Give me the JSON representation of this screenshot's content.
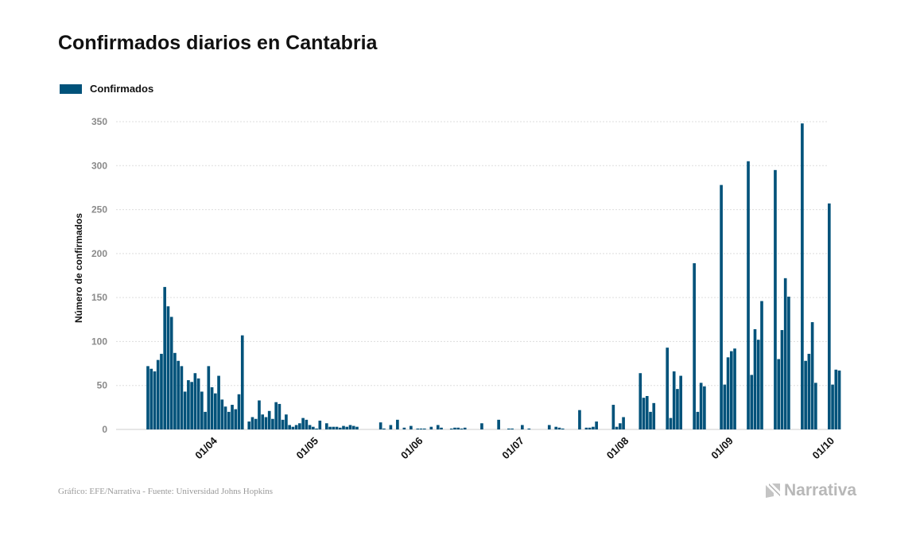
{
  "title": "Confirmados diarios en Cantabria",
  "footer": "Gráfico: EFE/Narrativa - Fuente: Universidad Johns Hopkins",
  "logo_text": "Narrativa",
  "colors": {
    "bar": "#00527a",
    "grid": "#dddddd",
    "tick": "#8a8a8a"
  },
  "chart_data": {
    "type": "bar",
    "title": "Confirmados diarios en Cantabria",
    "ylabel": "Número de confirmados",
    "xlabel": "",
    "legend": "top-left",
    "grid": true,
    "ylim": [
      0,
      350
    ],
    "yticks": [
      0,
      50,
      100,
      150,
      200,
      250,
      300,
      350
    ],
    "x_start": "2020-03-04",
    "x_end": "2020-10-01",
    "xticks": [
      {
        "date": "2020-04-01",
        "label": "01/04"
      },
      {
        "date": "2020-05-01",
        "label": "01/05"
      },
      {
        "date": "2020-06-01",
        "label": "01/06"
      },
      {
        "date": "2020-07-01",
        "label": "01/07"
      },
      {
        "date": "2020-08-01",
        "label": "01/08"
      },
      {
        "date": "2020-09-01",
        "label": "01/09"
      },
      {
        "date": "2020-10-01",
        "label": "01/10"
      }
    ],
    "series": [
      {
        "name": "Confirmados",
        "start_date": "2020-03-13",
        "values": [
          72,
          69,
          66,
          79,
          86,
          162,
          140,
          128,
          87,
          78,
          72,
          43,
          56,
          54,
          64,
          58,
          43,
          20,
          72,
          48,
          41,
          61,
          34,
          26,
          20,
          28,
          23,
          40,
          107,
          0,
          9,
          14,
          12,
          33,
          17,
          14,
          21,
          12,
          31,
          29,
          11,
          17,
          5,
          3,
          5,
          7,
          13,
          11,
          5,
          3,
          1,
          10,
          0,
          7,
          3,
          3,
          3,
          2,
          4,
          3,
          5,
          4,
          3,
          0,
          0,
          0,
          0,
          0,
          0,
          8,
          1,
          0,
          5,
          0,
          11,
          0,
          2,
          0,
          4,
          0,
          1,
          1,
          1,
          0,
          3,
          0,
          5,
          2,
          0,
          0,
          1,
          2,
          2,
          1,
          2,
          0,
          0,
          0,
          0,
          7,
          0,
          0,
          0,
          0,
          11,
          0,
          0,
          1,
          1,
          0,
          0,
          5,
          0,
          1,
          0,
          0,
          0,
          0,
          0,
          5,
          0,
          3,
          2,
          1,
          0,
          0,
          0,
          0,
          22,
          0,
          2,
          2,
          3,
          9,
          0,
          0,
          0,
          0,
          28,
          3,
          7,
          14,
          0,
          0,
          0,
          0,
          64,
          36,
          38,
          20,
          30,
          0,
          0,
          0,
          93,
          13,
          66,
          46,
          61,
          0,
          0,
          0,
          189,
          20,
          53,
          49,
          0,
          0,
          0,
          0,
          278,
          51,
          82,
          89,
          92,
          0,
          0,
          0,
          305,
          62,
          114,
          102,
          146,
          0,
          0,
          0,
          295,
          80,
          113,
          172,
          151,
          0,
          0,
          0,
          348,
          78,
          86,
          122,
          53,
          0,
          0,
          0,
          257,
          51,
          68,
          67
        ]
      }
    ]
  }
}
